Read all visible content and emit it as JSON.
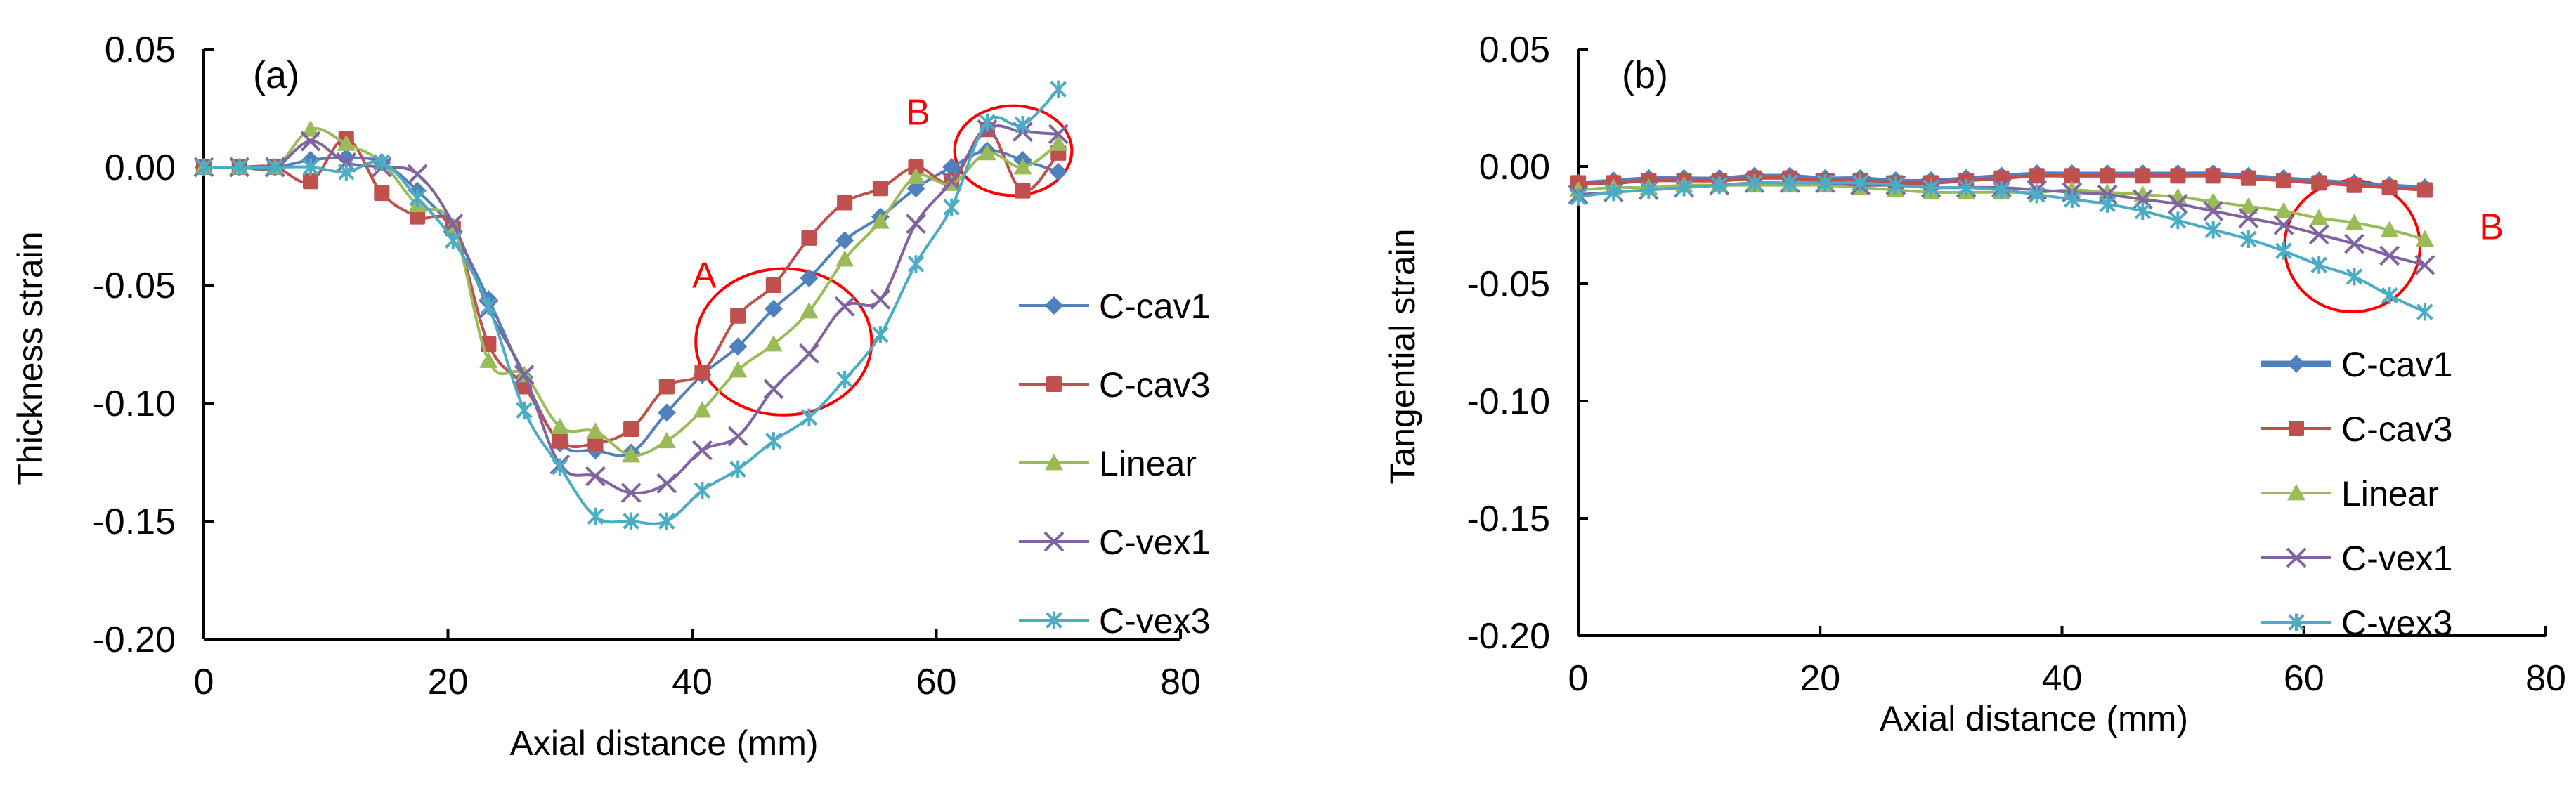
{
  "chart_data": [
    {
      "type": "line",
      "panel_label": "(a)",
      "title": "",
      "xlabel": "Axial distance (mm)",
      "ylabel": "Thickness strain",
      "xlim": [
        0,
        80
      ],
      "ylim": [
        -0.2,
        0.05
      ],
      "xticks": [
        0,
        20,
        40,
        60,
        80
      ],
      "xtick_labels": [
        "0",
        "20",
        "40",
        "60",
        "80"
      ],
      "yticks": [
        0.05,
        0.0,
        -0.05,
        -0.1,
        -0.15,
        -0.2
      ],
      "ytick_labels": [
        "0.05",
        "0.00",
        "-0.05",
        "-0.10",
        "-0.15",
        "-0.20"
      ],
      "grid": false,
      "legend_position": "right",
      "x": [
        0,
        2.92,
        5.83,
        8.75,
        11.67,
        14.58,
        17.5,
        20.42,
        23.33,
        26.25,
        29.17,
        32.08,
        35,
        37.92,
        40.83,
        43.75,
        46.67,
        49.58,
        52.5,
        55.42,
        58.33,
        61.25,
        64.17,
        67.08,
        70
      ],
      "series": [
        {
          "name": "C-cav1",
          "color": "#4F81BD",
          "marker": "diamond",
          "values": [
            0,
            0,
            0,
            0.003,
            0.004,
            0.002,
            -0.01,
            -0.027,
            -0.056,
            -0.089,
            -0.117,
            -0.12,
            -0.121,
            -0.104,
            -0.088,
            -0.076,
            -0.06,
            -0.047,
            -0.031,
            -0.021,
            -0.009,
            0.0,
            0.007,
            0.003,
            -0.002
          ]
        },
        {
          "name": "C-cav3",
          "color": "#C0504D",
          "marker": "square",
          "values": [
            0,
            0,
            0,
            -0.006,
            0.012,
            -0.011,
            -0.021,
            -0.026,
            -0.075,
            -0.093,
            -0.116,
            -0.117,
            -0.111,
            -0.093,
            -0.087,
            -0.063,
            -0.05,
            -0.03,
            -0.015,
            -0.009,
            0.0,
            -0.006,
            0.016,
            -0.01,
            0.006
          ]
        },
        {
          "name": "Linear",
          "color": "#9BBB59",
          "marker": "triangle",
          "values": [
            0,
            0,
            0,
            0.016,
            0.01,
            0.002,
            -0.016,
            -0.025,
            -0.082,
            -0.088,
            -0.11,
            -0.112,
            -0.122,
            -0.116,
            -0.103,
            -0.086,
            -0.075,
            -0.061,
            -0.039,
            -0.023,
            -0.004,
            -0.007,
            0.006,
            0.0,
            0.01
          ]
        },
        {
          "name": "C-vex1",
          "color": "#8064A2",
          "marker": "x",
          "values": [
            0,
            0,
            0,
            0.011,
            0.002,
            0.0,
            -0.003,
            -0.024,
            -0.06,
            -0.088,
            -0.126,
            -0.131,
            -0.138,
            -0.134,
            -0.12,
            -0.114,
            -0.094,
            -0.079,
            -0.059,
            -0.056,
            -0.024,
            -0.006,
            0.016,
            0.015,
            0.014
          ]
        },
        {
          "name": "C-vex3",
          "color": "#4BACC6",
          "marker": "star",
          "values": [
            0,
            0,
            0,
            0.0,
            -0.002,
            0.002,
            -0.013,
            -0.031,
            -0.059,
            -0.103,
            -0.127,
            -0.148,
            -0.15,
            -0.15,
            -0.137,
            -0.128,
            -0.116,
            -0.106,
            -0.09,
            -0.071,
            -0.041,
            -0.017,
            0.019,
            0.018,
            0.033
          ]
        }
      ],
      "annotations": [
        {
          "text": "A",
          "x": 40,
          "y": -0.051,
          "color": "#FF0000"
        },
        {
          "text": "B",
          "x": 57.5,
          "y": 0.018,
          "color": "#FF0000"
        }
      ],
      "highlight_ellipses": [
        {
          "label": "A",
          "cx": 47.5,
          "cy": -0.074,
          "rx": 7.2,
          "ry": 0.031,
          "color": "#FF0000"
        },
        {
          "label": "B",
          "cx": 66.3,
          "cy": 0.007,
          "rx": 4.8,
          "ry": 0.019,
          "color": "#FF0000"
        }
      ]
    },
    {
      "type": "line",
      "panel_label": "(b)",
      "title": "",
      "xlabel": "Axial distance (mm)",
      "ylabel": "Tangential strain",
      "xlim": [
        0,
        80
      ],
      "ylim": [
        -0.2,
        0.05
      ],
      "xticks": [
        0,
        20,
        40,
        60,
        80
      ],
      "xtick_labels": [
        "0",
        "20",
        "40",
        "60",
        "80"
      ],
      "yticks": [
        0.05,
        0.0,
        -0.05,
        -0.1,
        -0.15,
        -0.2
      ],
      "ytick_labels": [
        "0.05",
        "0.00",
        "-0.05",
        "-0.10",
        "-0.15",
        "-0.20"
      ],
      "grid": false,
      "legend_position": "bottom-right",
      "x": [
        0,
        2.92,
        5.83,
        8.75,
        11.67,
        14.58,
        17.5,
        20.42,
        23.33,
        26.25,
        29.17,
        32.08,
        35,
        37.92,
        40.83,
        43.75,
        46.67,
        49.58,
        52.5,
        55.42,
        58.33,
        61.25,
        64.17,
        67.08,
        70
      ],
      "series": [
        {
          "name": "C-cav1",
          "color": "#4F81BD",
          "marker": "diamond",
          "values": [
            -0.007,
            -0.006,
            -0.005,
            -0.005,
            -0.005,
            -0.004,
            -0.004,
            -0.005,
            -0.005,
            -0.006,
            -0.006,
            -0.005,
            -0.004,
            -0.003,
            -0.003,
            -0.003,
            -0.003,
            -0.003,
            -0.003,
            -0.004,
            -0.005,
            -0.006,
            -0.007,
            -0.008,
            -0.009
          ]
        },
        {
          "name": "C-cav3",
          "color": "#C0504D",
          "marker": "square",
          "values": [
            -0.007,
            -0.007,
            -0.006,
            -0.006,
            -0.006,
            -0.005,
            -0.005,
            -0.006,
            -0.006,
            -0.007,
            -0.007,
            -0.006,
            -0.005,
            -0.004,
            -0.004,
            -0.004,
            -0.004,
            -0.004,
            -0.004,
            -0.005,
            -0.006,
            -0.007,
            -0.008,
            -0.009,
            -0.01
          ]
        },
        {
          "name": "Linear",
          "color": "#9BBB59",
          "marker": "triangle",
          "values": [
            -0.01,
            -0.009,
            -0.009,
            -0.008,
            -0.008,
            -0.008,
            -0.008,
            -0.008,
            -0.009,
            -0.01,
            -0.011,
            -0.011,
            -0.011,
            -0.011,
            -0.01,
            -0.011,
            -0.012,
            -0.013,
            -0.015,
            -0.017,
            -0.019,
            -0.022,
            -0.024,
            -0.027,
            -0.031
          ]
        },
        {
          "name": "C-vex1",
          "color": "#8064A2",
          "marker": "x",
          "values": [
            -0.012,
            -0.011,
            -0.01,
            -0.009,
            -0.008,
            -0.007,
            -0.007,
            -0.007,
            -0.008,
            -0.008,
            -0.009,
            -0.009,
            -0.009,
            -0.01,
            -0.011,
            -0.012,
            -0.014,
            -0.016,
            -0.019,
            -0.022,
            -0.025,
            -0.029,
            -0.033,
            -0.038,
            -0.042
          ]
        },
        {
          "name": "C-vex3",
          "color": "#4BACC6",
          "marker": "star",
          "values": [
            -0.013,
            -0.011,
            -0.01,
            -0.009,
            -0.008,
            -0.007,
            -0.007,
            -0.007,
            -0.007,
            -0.008,
            -0.009,
            -0.009,
            -0.01,
            -0.012,
            -0.014,
            -0.016,
            -0.019,
            -0.023,
            -0.027,
            -0.031,
            -0.036,
            -0.042,
            -0.047,
            -0.055,
            -0.062
          ]
        }
      ],
      "annotations": [
        {
          "text": "B",
          "x": 74.5,
          "y": -0.031,
          "color": "#FF0000"
        }
      ],
      "highlight_ellipses": [
        {
          "label": "B",
          "cx": 64,
          "cy": -0.034,
          "rx": 5.6,
          "ry": 0.028,
          "color": "#FF0000"
        }
      ]
    }
  ]
}
